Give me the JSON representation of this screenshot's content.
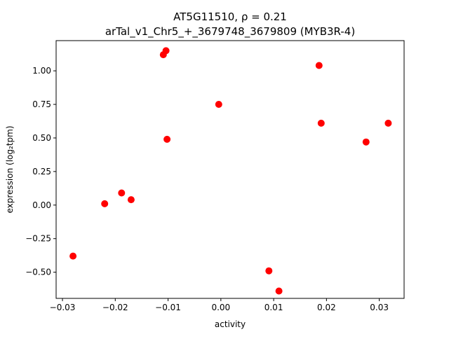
{
  "chart_data": {
    "type": "scatter",
    "title_line1": "AT5G11510, ρ = 0.21",
    "title_line2": "arTal_v1_Chr5_+_3679748_3679809 (MYB3R-4)",
    "xlabel": "activity",
    "ylabel": "expression (log₂tpm)",
    "xlim": [
      -0.0312,
      0.0347
    ],
    "ylim": [
      -0.695,
      1.225
    ],
    "xticks": [
      -0.03,
      -0.02,
      -0.01,
      0.0,
      0.01,
      0.02,
      0.03
    ],
    "xtick_labels": [
      "−0.03",
      "−0.02",
      "−0.01",
      "0.00",
      "0.01",
      "0.02",
      "0.03"
    ],
    "yticks": [
      -0.5,
      -0.25,
      0.0,
      0.25,
      0.5,
      0.75,
      1.0
    ],
    "ytick_labels": [
      "−0.50",
      "−0.25",
      "0.00",
      "0.25",
      "0.50",
      "0.75",
      "1.00"
    ],
    "grid": false,
    "marker_color": "#ff0000",
    "points": [
      {
        "x": -0.028,
        "y": -0.38
      },
      {
        "x": -0.022,
        "y": 0.01
      },
      {
        "x": -0.0188,
        "y": 0.09
      },
      {
        "x": -0.017,
        "y": 0.04
      },
      {
        "x": -0.0109,
        "y": 1.12
      },
      {
        "x": -0.0104,
        "y": 1.15
      },
      {
        "x": -0.0102,
        "y": 0.49
      },
      {
        "x": -0.0004,
        "y": 0.75
      },
      {
        "x": 0.0091,
        "y": -0.49
      },
      {
        "x": 0.011,
        "y": -0.64
      },
      {
        "x": 0.0186,
        "y": 1.04
      },
      {
        "x": 0.019,
        "y": 0.61
      },
      {
        "x": 0.0275,
        "y": 0.47
      },
      {
        "x": 0.0317,
        "y": 0.61
      }
    ]
  }
}
